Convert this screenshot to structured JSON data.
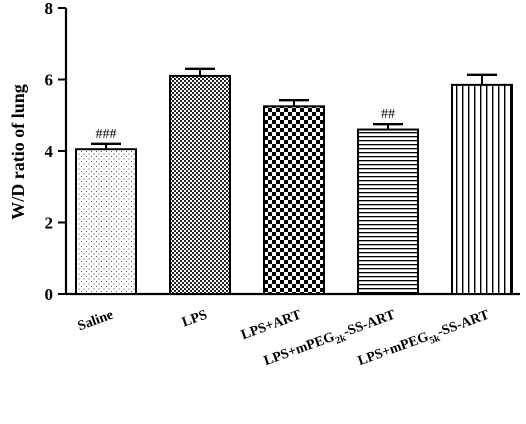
{
  "chart_data": {
    "type": "bar",
    "ylabel": "W/D ratio of lung",
    "ylim": [
      0,
      8
    ],
    "yticks": [
      0,
      2,
      4,
      6,
      8
    ],
    "grid": false,
    "categories": [
      {
        "label": "Saline",
        "sub": "",
        "rest": ""
      },
      {
        "label": "LPS",
        "sub": "",
        "rest": ""
      },
      {
        "label": "LPS+ART",
        "sub": "",
        "rest": ""
      },
      {
        "label": "LPS+mPEG",
        "sub": "2k",
        "rest": "-SS-ART"
      },
      {
        "label": "LPS+mPEG",
        "sub": "5k",
        "rest": "-SS-ART"
      }
    ],
    "values": [
      4.05,
      6.1,
      5.25,
      4.6,
      5.85
    ],
    "errors": [
      0.15,
      0.2,
      0.17,
      0.15,
      0.28
    ],
    "annotations": [
      "###",
      "",
      "",
      "##",
      ""
    ],
    "patterns": [
      "dots",
      "checker-fine",
      "checker-coarse",
      "horizontal-lines",
      "vertical-lines"
    ]
  }
}
